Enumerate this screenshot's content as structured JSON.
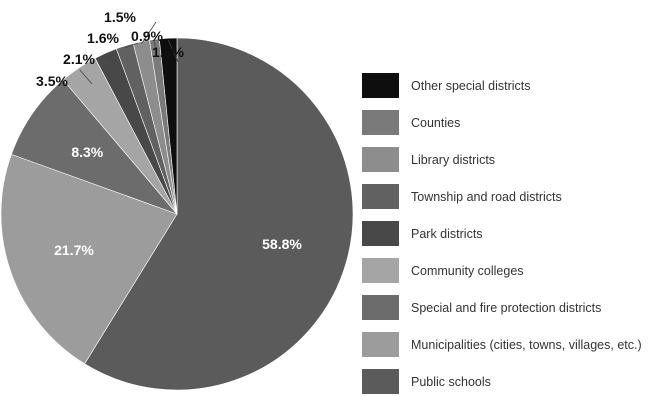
{
  "chart_data": {
    "type": "pie",
    "slices": [
      {
        "label": "Public schools",
        "value": 58.8,
        "display": "58.8%",
        "color": "#5b5b5b",
        "label_color": "#ffffff"
      },
      {
        "label": "Municipalities (cities, towns, villages, etc.)",
        "value": 21.7,
        "display": "21.7%",
        "color": "#9c9c9c",
        "label_color": "#ffffff"
      },
      {
        "label": "Special and fire protection districts",
        "value": 8.3,
        "display": "8.3%",
        "color": "#6c6c6c",
        "label_color": "#ffffff"
      },
      {
        "label": "Community colleges",
        "value": 3.5,
        "display": "3.5%",
        "color": "#a5a5a5",
        "label_color": "#111111"
      },
      {
        "label": "Park districts",
        "value": 2.1,
        "display": "2.1%",
        "color": "#484848",
        "label_color": "#111111"
      },
      {
        "label": "Township and road districts",
        "value": 1.6,
        "display": "1.6%",
        "color": "#616161",
        "label_color": "#111111"
      },
      {
        "label": "Library districts",
        "value": 1.5,
        "display": "1.5%",
        "color": "#8d8d8d",
        "label_color": "#111111"
      },
      {
        "label": "Counties",
        "value": 0.9,
        "display": "0.9%",
        "color": "#7a7a7a",
        "label_color": "#111111"
      },
      {
        "label": "Other special districts",
        "value": 1.6,
        "display": "1.6%",
        "color": "#0e0e0e",
        "label_color": "#111111"
      }
    ],
    "legend": {
      "placement": "right",
      "order": [
        "Other special districts",
        "Counties",
        "Library districts",
        "Township and road districts",
        "Park districts",
        "Community colleges",
        "Special and fire protection districts",
        "Municipalities (cities, towns, villages, etc.)",
        "Public schools"
      ]
    }
  }
}
